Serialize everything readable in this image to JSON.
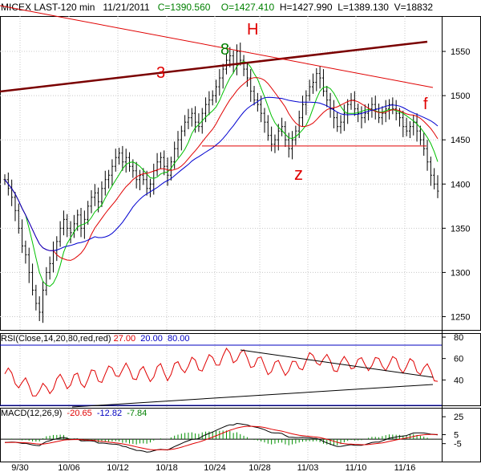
{
  "header": {
    "symbol": "MICEX LAST-120 min",
    "date": "11/21/2011",
    "close": "C=1390.560",
    "open": "O=1427.410",
    "high": "H=1427.990",
    "low": "L=1389.130",
    "volume": "V=18832"
  },
  "rsi_label": {
    "name": "RSI(Close,14,20,80,red,red)",
    "v1": "27.00",
    "v2": "20.00",
    "v3": "80.00"
  },
  "macd_label": {
    "name": "MACD(12,26,9)",
    "v1": "-20.65",
    "v2": "-12.82",
    "v3": "-7.84"
  },
  "colors": {
    "price_up": "#000000",
    "ma_green": "#00c000",
    "ma_red": "#e00000",
    "ma_blue": "#0000d0",
    "trend_red": "#e00000",
    "trend_dark": "#7a0000",
    "rsi_band": "#0000c0",
    "macd_hist": "#009000"
  },
  "annotations": [
    {
      "text": "3",
      "color": "#e00000"
    },
    {
      "text": "8",
      "color": "#008000"
    },
    {
      "text": "H",
      "color": "#e00000"
    },
    {
      "text": "z",
      "color": "#e00000"
    },
    {
      "text": "f",
      "color": "#e00000"
    }
  ],
  "chart_data": [
    {
      "type": "candlestick",
      "title": "MICEX LAST-120 min",
      "x_tick_labels": [
        "9/30",
        "10/06",
        "10/12",
        "10/18",
        "10/24",
        "10/28",
        "11/03",
        "11/10",
        "11/16"
      ],
      "y_ticks": [
        1250,
        1300,
        1350,
        1400,
        1450,
        1500,
        1550
      ],
      "ylim": [
        1235,
        1590
      ],
      "close_path": [
        1405,
        1395,
        1385,
        1370,
        1350,
        1330,
        1320,
        1300,
        1280,
        1265,
        1255,
        1280,
        1300,
        1310,
        1325,
        1335,
        1350,
        1360,
        1350,
        1345,
        1355,
        1365,
        1350,
        1360,
        1375,
        1385,
        1390,
        1380,
        1395,
        1405,
        1410,
        1420,
        1430,
        1435,
        1425,
        1430,
        1420,
        1415,
        1405,
        1410,
        1405,
        1395,
        1400,
        1415,
        1425,
        1430,
        1420,
        1410,
        1425,
        1440,
        1450,
        1460,
        1470,
        1475,
        1480,
        1470,
        1465,
        1480,
        1490,
        1495,
        1500,
        1510,
        1520,
        1530,
        1540,
        1545,
        1535,
        1550,
        1540,
        1530,
        1520,
        1505,
        1495,
        1490,
        1480,
        1470,
        1455,
        1445,
        1450,
        1460,
        1465,
        1450,
        1440,
        1450,
        1460,
        1475,
        1490,
        1500,
        1510,
        1515,
        1525,
        1520,
        1505,
        1495,
        1485,
        1475,
        1465,
        1470,
        1480,
        1490,
        1495,
        1485,
        1480,
        1475,
        1480,
        1485,
        1490,
        1485,
        1475,
        1480,
        1485,
        1490,
        1485,
        1480,
        1475,
        1465,
        1460,
        1465,
        1470,
        1460,
        1450,
        1440,
        1425,
        1410,
        1400,
        1392
      ],
      "moving_averages": [
        {
          "color": "green",
          "lag": 3
        },
        {
          "color": "red",
          "lag": 7
        },
        {
          "color": "blue",
          "lag": 13
        }
      ],
      "horizontal_line": 1443,
      "annotations_text": [
        "3",
        "8",
        "H",
        "z",
        "f"
      ]
    },
    {
      "type": "line",
      "title": "RSI(Close,14,20,80,red,red)",
      "y_ticks": [
        40,
        60,
        80
      ],
      "ylim": [
        20,
        80
      ],
      "band_lines": [
        80,
        27
      ]
    },
    {
      "type": "bar",
      "title": "MACD(12,26,9)",
      "y_ticks": [
        25,
        5,
        -5
      ],
      "ylim": [
        -25,
        35
      ]
    }
  ]
}
